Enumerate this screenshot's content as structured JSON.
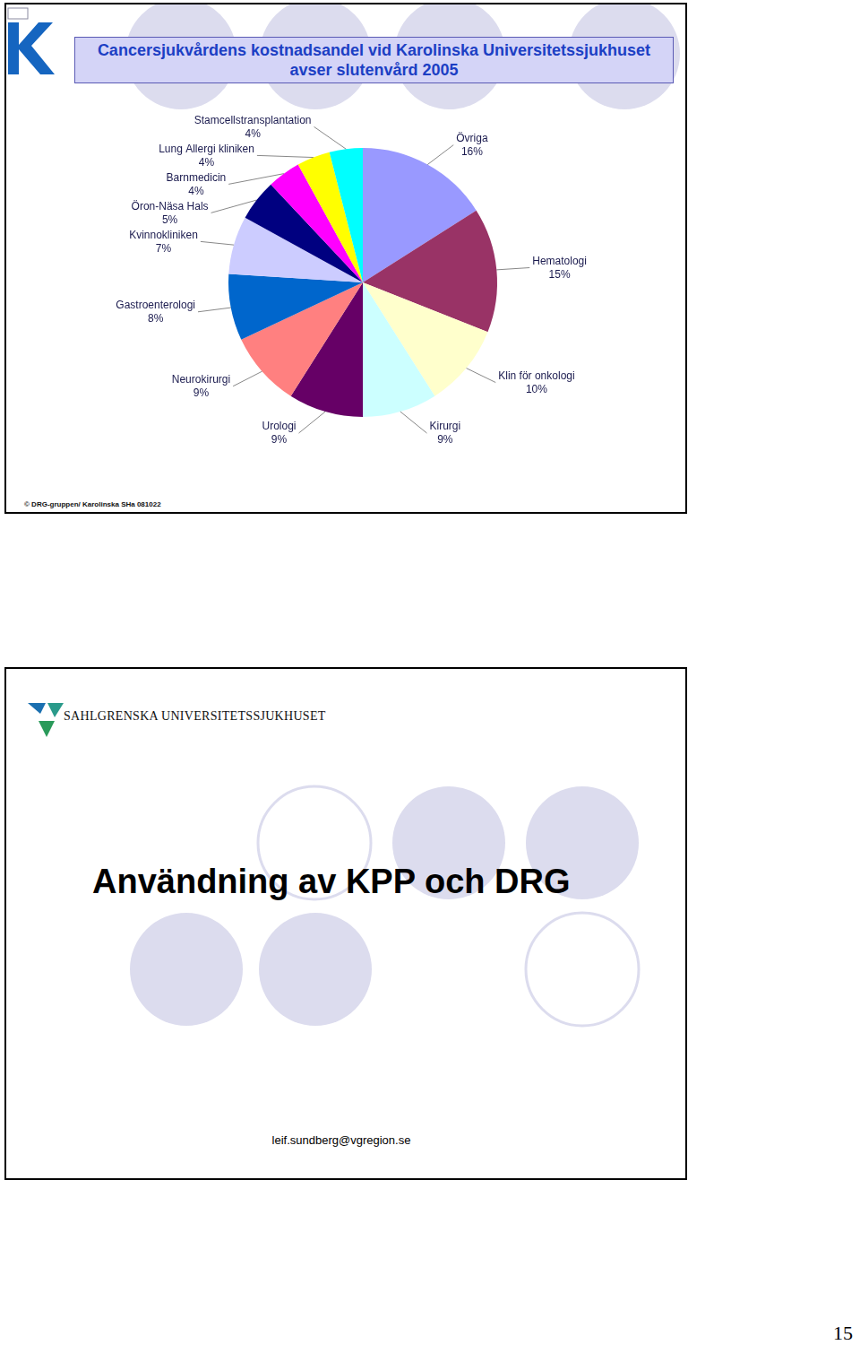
{
  "chart_data": {
    "type": "pie",
    "title": "Cancersjukvårdens kostnadsandel vid Karolinska Universitetssjukhuset avser slutenvård 2005",
    "categories": [
      "Övriga",
      "Hematologi",
      "Klin för onkologi",
      "Kirurgi",
      "Urologi",
      "Neurokirurgi",
      "Gastroenterologi",
      "Kvinnokliniken",
      "Öron-Näsa Hals",
      "Barnmedicin",
      "Lung Allergi kliniken",
      "Stamcellstransplantation"
    ],
    "values": [
      16,
      15,
      10,
      9,
      9,
      9,
      8,
      7,
      5,
      4,
      4,
      4
    ],
    "value_labels": [
      "16%",
      "15%",
      "10%",
      "9%",
      "9%",
      "9%",
      "8%",
      "7%",
      "5%",
      "4%",
      "4%",
      "4%"
    ],
    "colors": [
      "#9999ff",
      "#993366",
      "#ffffcc",
      "#ccffff",
      "#660066",
      "#ff8080",
      "#0066cc",
      "#ccccff",
      "#000080",
      "#ff00ff",
      "#ffff00",
      "#00ffff"
    ],
    "data_labels": true
  },
  "copyright": "© DRG-gruppen/ Karolinska SHa 081022",
  "slide2": {
    "logo_text": "SAHLGRENSKA UNIVERSITETSSJUKHUSET",
    "title": "Användning av KPP och DRG",
    "email": "leif.sundberg@vgregion.se"
  },
  "page_number": 15
}
